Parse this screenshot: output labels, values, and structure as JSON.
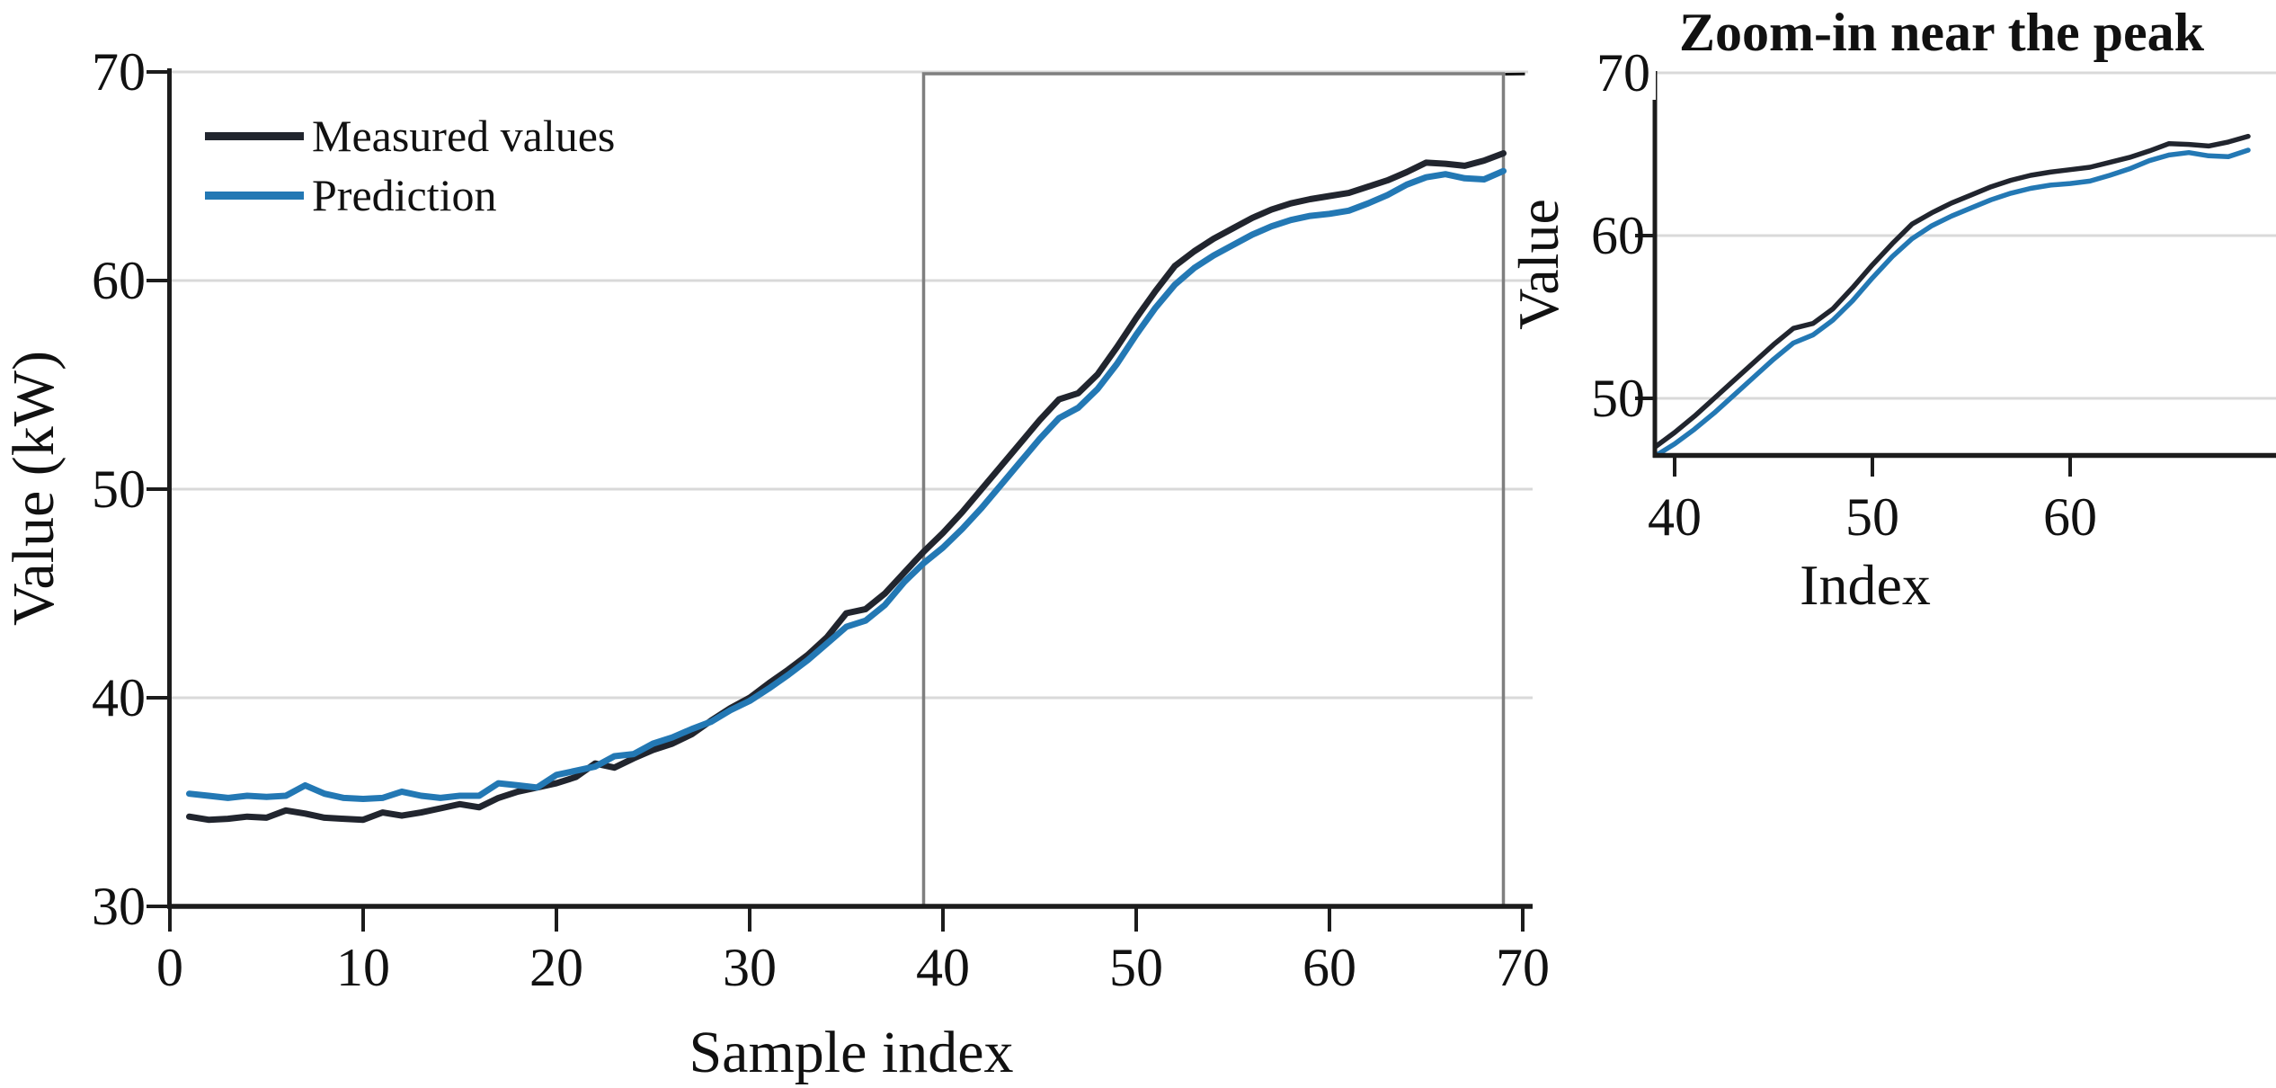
{
  "style": {
    "background": "#ffffff",
    "axis_color": "#1c1c1c",
    "grid_color": "#d9d9d9",
    "zoom_box_color": "#7f7f7f",
    "measured_color": "#21252e",
    "prediction_color": "#2378b4"
  },
  "chart_data": [
    {
      "type": "line",
      "panel": "main",
      "title": "",
      "xlabel": "Sample index",
      "ylabel": "Value (kW)",
      "xlim": [
        0,
        70
      ],
      "ylim": [
        30,
        70
      ],
      "x_ticks": [
        0,
        10,
        20,
        30,
        40,
        50,
        60,
        70
      ],
      "y_ticks": [
        30,
        40,
        50,
        60,
        70
      ],
      "grid": "horizontal-only",
      "legend_position": "upper-left",
      "zoom_box": {
        "x_range": [
          39,
          69
        ],
        "y_range": [
          30,
          70
        ]
      },
      "x": [
        1,
        2,
        3,
        4,
        5,
        6,
        7,
        8,
        9,
        10,
        11,
        12,
        13,
        14,
        15,
        16,
        17,
        18,
        19,
        20,
        21,
        22,
        23,
        24,
        25,
        26,
        27,
        28,
        29,
        30,
        31,
        32,
        33,
        34,
        35,
        36,
        37,
        38,
        39,
        40,
        41,
        42,
        43,
        44,
        45,
        46,
        47,
        48,
        49,
        50,
        51,
        52,
        53,
        54,
        55,
        56,
        57,
        58,
        59,
        60,
        61,
        62,
        63,
        64,
        65,
        66,
        67,
        68,
        69
      ],
      "series": [
        {
          "name": "Measured values",
          "color": "#21252e",
          "values": [
            34.3,
            34.15,
            34.2,
            34.3,
            34.25,
            34.6,
            34.45,
            34.25,
            34.2,
            34.15,
            34.5,
            34.35,
            34.5,
            34.7,
            34.9,
            34.75,
            35.2,
            35.5,
            35.7,
            35.9,
            36.2,
            36.85,
            36.65,
            37.1,
            37.5,
            37.8,
            38.25,
            38.9,
            39.5,
            40.0,
            40.7,
            41.35,
            42.05,
            42.9,
            44.05,
            44.25,
            45.0,
            46.0,
            47.0,
            47.9,
            48.9,
            50.0,
            51.1,
            52.2,
            53.3,
            54.3,
            54.6,
            55.5,
            56.8,
            58.2,
            59.5,
            60.7,
            61.4,
            62.0,
            62.5,
            63.0,
            63.4,
            63.7,
            63.9,
            64.05,
            64.2,
            64.5,
            64.8,
            65.2,
            65.65,
            65.6,
            65.5,
            65.75,
            66.1
          ]
        },
        {
          "name": "Prediction",
          "color": "#2378b4",
          "values": [
            35.4,
            35.3,
            35.2,
            35.3,
            35.25,
            35.3,
            35.8,
            35.4,
            35.2,
            35.15,
            35.2,
            35.5,
            35.3,
            35.2,
            35.3,
            35.3,
            35.9,
            35.8,
            35.7,
            36.3,
            36.5,
            36.7,
            37.2,
            37.3,
            37.8,
            38.1,
            38.5,
            38.85,
            39.4,
            39.85,
            40.45,
            41.1,
            41.8,
            42.6,
            43.4,
            43.7,
            44.45,
            45.55,
            46.45,
            47.2,
            48.1,
            49.1,
            50.2,
            51.3,
            52.4,
            53.4,
            53.9,
            54.8,
            56.0,
            57.4,
            58.7,
            59.8,
            60.6,
            61.2,
            61.7,
            62.2,
            62.6,
            62.9,
            63.1,
            63.2,
            63.35,
            63.7,
            64.1,
            64.6,
            64.95,
            65.1,
            64.9,
            64.85,
            65.25
          ]
        }
      ]
    },
    {
      "type": "line",
      "panel": "inset",
      "title": "Zoom-in near the peak",
      "xlabel": "Index",
      "ylabel": "Value",
      "xlim": [
        39,
        70.4
      ],
      "ylim": [
        46.5,
        70
      ],
      "x_ticks": [
        40,
        50,
        60
      ],
      "y_ticks": [
        50,
        60,
        70
      ],
      "grid": "horizontal-only",
      "series_source": "same two series as main panel, shown for x >= 39",
      "connector": "dashed line from main zoom box top-right corner to inset top-left"
    }
  ]
}
